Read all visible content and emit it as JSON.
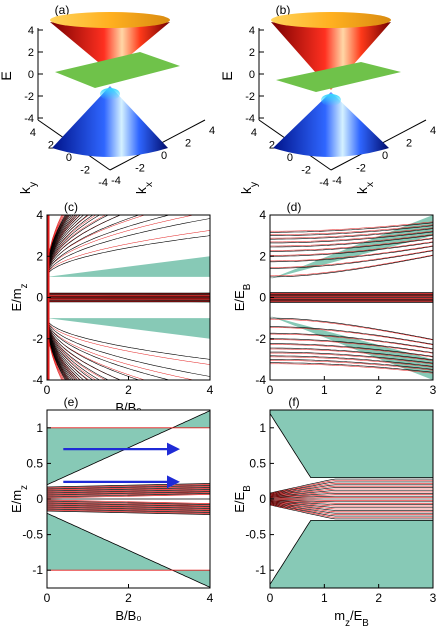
{
  "figure": {
    "colors": {
      "fill": "#87c9b6",
      "red": "#e31a1a",
      "black": "#000000",
      "green": "#6fc24a",
      "arrow": "#1f2bd6"
    }
  },
  "chart_data": [
    {
      "panel": "(a)",
      "type": "surface3d",
      "zlabel": "E",
      "xlabel": "k_x",
      "ylabel": "k_y",
      "z_ticks": [
        "4",
        "2",
        "0",
        "-2",
        "-4"
      ],
      "x_ticks": [
        "-4",
        "-2",
        "0",
        "2",
        "4"
      ],
      "y_ticks": [
        "4",
        "2",
        "0",
        "-2",
        "-4"
      ],
      "surfaces": [
        "upper cone",
        "flat band",
        "lower cone"
      ],
      "gap": false
    },
    {
      "panel": "(b)",
      "type": "surface3d",
      "zlabel": "E",
      "xlabel": "k_x",
      "ylabel": "k_y",
      "z_ticks": [
        "4",
        "2",
        "0",
        "-2",
        "-4"
      ],
      "x_ticks": [
        "-4",
        "-2",
        "0",
        "2",
        "4"
      ],
      "y_ticks": [
        "4",
        "2",
        "0",
        "-2",
        "-4"
      ],
      "surfaces": [
        "upper cone",
        "flat band",
        "lower cone"
      ],
      "gap": true
    },
    {
      "panel": "(c)",
      "type": "line",
      "xlabel": "B/B₀",
      "ylabel": "E/m_z",
      "xlim": [
        0,
        4
      ],
      "ylim": [
        -4,
        4
      ],
      "x_ticks": [
        "0",
        "2",
        "4"
      ],
      "y_ticks": [
        "4",
        "2",
        "0",
        "-2",
        "-4"
      ],
      "grid": false,
      "shaded_regions": [
        {
          "from": "E/m_z = 1",
          "to": "E/m_z = 1 + B/B₀/4"
        },
        {
          "from": "E/m_z = -1",
          "to": "E/m_z = -1 - B/B₀/4"
        },
        {
          "from": "E/m_z = 0",
          "to": "E/m_z = ±0.25"
        }
      ],
      "series": [
        {
          "color": "black",
          "curves": "E = ±(1 + 2 sqrt(n·B/B₀)), n = 1…20"
        },
        {
          "color": "red",
          "curves": "E = ±(1 + 2.2 sqrt(n·B/B₀)), n = 1…20, and flat bands near E = 0"
        }
      ]
    },
    {
      "panel": "(d)",
      "type": "line",
      "xlabel": "",
      "ylabel": "E/E_B",
      "xlim": [
        0,
        3
      ],
      "ylim": [
        -4,
        4
      ],
      "x_ticks": [
        "0",
        "1",
        "2",
        "3"
      ],
      "y_ticks": [
        "4",
        "2",
        "0",
        "-2",
        "-4"
      ],
      "grid": false,
      "shaded_regions": [
        {
          "from": "E/E_B = 0.9",
          "to": "E/E_B = 3"
        },
        {
          "from": "E/E_B = -0.9",
          "to": "E/E_B = -3"
        }
      ],
      "series": [
        {
          "color": "black",
          "curves": "E = ±sqrt(2n + m²), n = 1…10"
        },
        {
          "color": "red",
          "curves": "E = ±sqrt(2.05n + m²), n = 1…10"
        }
      ]
    },
    {
      "panel": "(e)",
      "type": "line",
      "xlabel": "B/B₀",
      "ylabel": "E/m_z",
      "xlim": [
        0,
        4
      ],
      "ylim": [
        -1.25,
        1.25
      ],
      "x_ticks": [
        "0",
        "2",
        "4"
      ],
      "y_ticks": [
        "1",
        "0.5",
        "0",
        "-0.5",
        "-1"
      ],
      "grid": false,
      "shaded_regions": [
        {
          "from": "E/m_z = 0.2",
          "to": "E/m_z = 1"
        },
        {
          "from": "E/m_z = -0.2",
          "to": "E/m_z = -1"
        }
      ],
      "series": [
        {
          "color": "black",
          "curves": "E = ±(0.2 + 0.8 B/B₀), boundary curve"
        },
        {
          "color": "red",
          "curves": "horizontal bands between E = -0.2 and 0.2"
        }
      ],
      "annotations": [
        {
          "type": "arrow",
          "color": "blue",
          "y": 0.7,
          "x_from": 0.4,
          "x_to": 3.2
        },
        {
          "type": "arrow",
          "color": "blue",
          "y": 0.24,
          "x_from": 0.4,
          "x_to": 3.2
        }
      ]
    },
    {
      "panel": "(f)",
      "type": "line",
      "xlabel": "m_z/E_B",
      "ylabel": "E/E_B",
      "xlim": [
        0,
        3
      ],
      "ylim": [
        -1.25,
        1.25
      ],
      "x_ticks": [
        "0",
        "1",
        "2",
        "3"
      ],
      "y_ticks": [
        "1",
        "0.5",
        "0",
        "-0.5",
        "-1"
      ],
      "grid": false,
      "shaded_regions": [
        {
          "from": "E/E_B = 0",
          "to": "E/E_B = 1.2"
        },
        {
          "from": "E/E_B = 0",
          "to": "E/E_B = -1.2"
        }
      ],
      "series": [
        {
          "color": "black",
          "curves": "E = ±1.2 - 1.2 m_z/E_B, boundary curve"
        },
        {
          "color": "red",
          "curves": "horizontal bands between E = -0.3 and 0.3"
        }
      ]
    }
  ]
}
